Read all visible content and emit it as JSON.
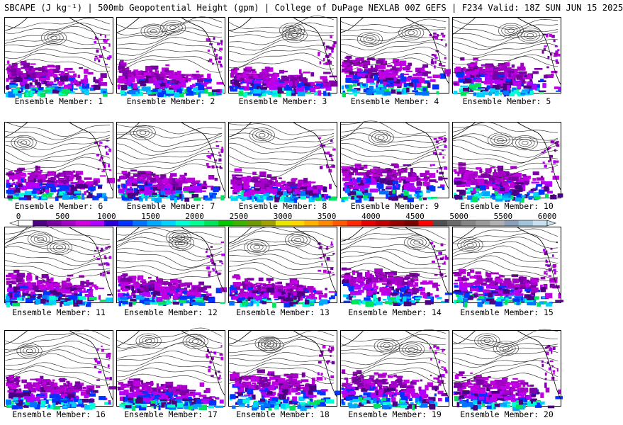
{
  "header": {
    "title": "SBCAPE (J kg⁻¹) | 500mb Geopotential Height (gpm) | College of DuPage NEXLAB 00Z GEFS | F234 Valid: 18Z SUN JUN 15 2025"
  },
  "map": {
    "field": "SBCAPE",
    "overlay": "500mb Geopotential Height",
    "model": "GEFS",
    "run": "00Z",
    "forecast_hour": "F234",
    "valid": "18Z SUN JUN 15 2025",
    "source": "College of DuPage NEXLAB"
  },
  "panels": [
    {
      "label": "Ensemble Member: 1",
      "member": 1
    },
    {
      "label": "Ensemble Member: 2",
      "member": 2
    },
    {
      "label": "Ensemble Member: 3",
      "member": 3
    },
    {
      "label": "Ensemble Member: 4",
      "member": 4
    },
    {
      "label": "Ensemble Member: 5",
      "member": 5
    },
    {
      "label": "Ensemble Member: 6",
      "member": 6
    },
    {
      "label": "Ensemble Member: 7",
      "member": 7
    },
    {
      "label": "Ensemble Member: 8",
      "member": 8
    },
    {
      "label": "Ensemble Member: 9",
      "member": 9
    },
    {
      "label": "Ensemble Member: 10",
      "member": 10
    },
    {
      "label": "Ensemble Member: 11",
      "member": 11
    },
    {
      "label": "Ensemble Member: 12",
      "member": 12
    },
    {
      "label": "Ensemble Member: 13",
      "member": 13
    },
    {
      "label": "Ensemble Member: 14",
      "member": 14
    },
    {
      "label": "Ensemble Member: 15",
      "member": 15
    },
    {
      "label": "Ensemble Member: 16",
      "member": 16
    },
    {
      "label": "Ensemble Member: 17",
      "member": 17
    },
    {
      "label": "Ensemble Member: 18",
      "member": 18
    },
    {
      "label": "Ensemble Member: 19",
      "member": 19
    },
    {
      "label": "Ensemble Member: 20",
      "member": 20
    }
  ],
  "colorbar": {
    "ticks": [
      "0",
      "500",
      "1000",
      "1500",
      "2000",
      "2500",
      "3000",
      "3500",
      "4000",
      "4500",
      "5000",
      "5500",
      "6000"
    ],
    "colors": [
      "#ffffff",
      "#4b0082",
      "#7a00a6",
      "#a400c8",
      "#d100e0",
      "#b200ff",
      "#2a00d4",
      "#0033ff",
      "#0073ff",
      "#00a8ff",
      "#00d2ff",
      "#00ffd5",
      "#00ff94",
      "#00e45c",
      "#00c800",
      "#3cb300",
      "#6e9900",
      "#a0a000",
      "#e6e600",
      "#ffd700",
      "#ffb000",
      "#ff8800",
      "#ff5a00",
      "#ff2a00",
      "#e60000",
      "#c00000",
      "#960000",
      "#780000",
      "#ff0000",
      "#505050",
      "#6a6a6a",
      "#858585",
      "#9a9a9a",
      "#b0b0b0",
      "#8aa0b8",
      "#a0c4dc",
      "#c8e0f0"
    ]
  },
  "colors": {
    "contour": "#000000",
    "coast": "#000000",
    "cape_low": "#a400c8",
    "cape_mid": "#0073ff",
    "cape_high": "#00ff94"
  }
}
